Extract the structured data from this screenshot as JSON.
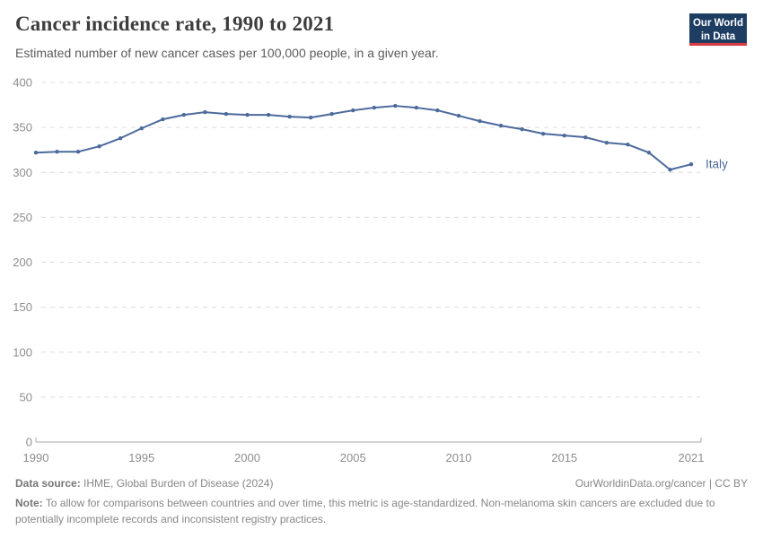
{
  "header": {
    "title": "Cancer incidence rate, 1990 to 2021",
    "subtitle": "Estimated number of new cancer cases per 100,000 people, in a given year.",
    "logo": {
      "line1": "Our World",
      "line2": "in Data"
    }
  },
  "chart_data": {
    "type": "line",
    "title": "Cancer incidence rate, 1990 to 2021",
    "xlabel": "",
    "ylabel": "",
    "xlim": [
      1990,
      2021
    ],
    "ylim": [
      0,
      400
    ],
    "x_ticks": [
      1990,
      1995,
      2000,
      2005,
      2010,
      2015,
      2021
    ],
    "y_ticks": [
      0,
      50,
      100,
      150,
      200,
      250,
      300,
      350,
      400
    ],
    "grid": "horizontal-dashed",
    "legend_position": "end-of-line-label",
    "series": [
      {
        "name": "Italy",
        "color": "#4c6a9c",
        "x": [
          1990,
          1991,
          1992,
          1993,
          1994,
          1995,
          1996,
          1997,
          1998,
          1999,
          2000,
          2001,
          2002,
          2003,
          2004,
          2005,
          2006,
          2007,
          2008,
          2009,
          2010,
          2011,
          2012,
          2013,
          2014,
          2015,
          2016,
          2017,
          2018,
          2019,
          2020,
          2021
        ],
        "values": [
          322,
          323,
          323,
          329,
          338,
          349,
          359,
          364,
          367,
          365,
          364,
          364,
          362,
          361,
          365,
          369,
          372,
          374,
          372,
          369,
          363,
          357,
          352,
          348,
          343,
          341,
          339,
          333,
          331,
          322,
          303,
          309
        ]
      }
    ]
  },
  "footer": {
    "datasource_label": "Data source:",
    "datasource": " IHME, Global Burden of Disease (2024)",
    "rights_link": "OurWorldinData.org/cancer",
    "rights_suffix": " | CC BY",
    "note_label": "Note:",
    "note": " To allow for comparisons between countries and over time, this metric is age-standardized. Non-melanoma skin cancers are excluded due to potentially incomplete records and inconsistent registry practices."
  },
  "colors": {
    "title": "#3d3d3d",
    "subtitle": "#5b5b5b",
    "tick_label": "#8e8e8e",
    "gridline": "#dcdcdc",
    "axis_line": "#a9a9a9",
    "logo_bg": "#1d3d63",
    "logo_accent": "#d93a46",
    "series_blue": "#4c6a9c"
  }
}
